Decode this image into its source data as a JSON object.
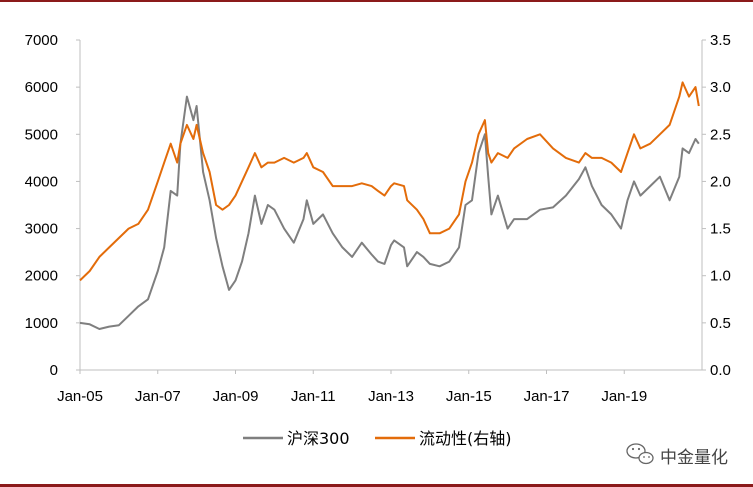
{
  "colors": {
    "frame": "#8b1a1a",
    "csi300": "#7f7f7f",
    "liquidity": "#e36c0a",
    "axis": "#bfbfbf"
  },
  "watermark": {
    "text": "中金量化",
    "icon": "wechat-icon"
  },
  "chart_data": {
    "type": "line",
    "title": "",
    "xlabel": "",
    "ylabel": "",
    "x_ticks": [
      "Jan-05",
      "Jan-07",
      "Jan-09",
      "Jan-11",
      "Jan-13",
      "Jan-15",
      "Jan-17",
      "Jan-19"
    ],
    "y_left_ticks": [
      "0",
      "1000",
      "2000",
      "3000",
      "4000",
      "5000",
      "6000",
      "7000"
    ],
    "y_right_ticks": [
      "0.0",
      "0.5",
      "1.0",
      "1.5",
      "2.0",
      "2.5",
      "3.0",
      "3.5"
    ],
    "ylim_left": [
      0,
      7000
    ],
    "ylim_right": [
      0,
      3.5
    ],
    "xlim": [
      "2005-01",
      "2020-12"
    ],
    "grid": false,
    "legend_position": "bottom",
    "series": [
      {
        "name": "沪深300",
        "axis": "left",
        "points": [
          [
            "2005-01",
            1000
          ],
          [
            "2005-04",
            970
          ],
          [
            "2005-07",
            870
          ],
          [
            "2005-10",
            920
          ],
          [
            "2006-01",
            950
          ],
          [
            "2006-04",
            1150
          ],
          [
            "2006-07",
            1350
          ],
          [
            "2006-10",
            1500
          ],
          [
            "2007-01",
            2100
          ],
          [
            "2007-03",
            2600
          ],
          [
            "2007-05",
            3800
          ],
          [
            "2007-07",
            3700
          ],
          [
            "2007-08",
            4800
          ],
          [
            "2007-10",
            5800
          ],
          [
            "2007-12",
            5300
          ],
          [
            "2008-01",
            5600
          ],
          [
            "2008-03",
            4200
          ],
          [
            "2008-05",
            3600
          ],
          [
            "2008-07",
            2800
          ],
          [
            "2008-09",
            2200
          ],
          [
            "2008-11",
            1700
          ],
          [
            "2009-01",
            1900
          ],
          [
            "2009-03",
            2300
          ],
          [
            "2009-05",
            2900
          ],
          [
            "2009-07",
            3700
          ],
          [
            "2009-09",
            3100
          ],
          [
            "2009-11",
            3500
          ],
          [
            "2010-01",
            3400
          ],
          [
            "2010-04",
            3000
          ],
          [
            "2010-07",
            2700
          ],
          [
            "2010-10",
            3200
          ],
          [
            "2010-11",
            3600
          ],
          [
            "2011-01",
            3100
          ],
          [
            "2011-04",
            3300
          ],
          [
            "2011-07",
            2900
          ],
          [
            "2011-10",
            2600
          ],
          [
            "2012-01",
            2400
          ],
          [
            "2012-04",
            2700
          ],
          [
            "2012-07",
            2450
          ],
          [
            "2012-09",
            2300
          ],
          [
            "2012-11",
            2250
          ],
          [
            "2013-01",
            2650
          ],
          [
            "2013-02",
            2750
          ],
          [
            "2013-05",
            2600
          ],
          [
            "2013-06",
            2200
          ],
          [
            "2013-09",
            2500
          ],
          [
            "2013-11",
            2400
          ],
          [
            "2014-01",
            2250
          ],
          [
            "2014-04",
            2200
          ],
          [
            "2014-07",
            2300
          ],
          [
            "2014-10",
            2600
          ],
          [
            "2014-12",
            3500
          ],
          [
            "2015-02",
            3600
          ],
          [
            "2015-04",
            4600
          ],
          [
            "2015-06",
            5000
          ],
          [
            "2015-07",
            4100
          ],
          [
            "2015-08",
            3300
          ],
          [
            "2015-10",
            3700
          ],
          [
            "2016-01",
            3000
          ],
          [
            "2016-03",
            3200
          ],
          [
            "2016-07",
            3200
          ],
          [
            "2016-11",
            3400
          ],
          [
            "2017-03",
            3450
          ],
          [
            "2017-07",
            3700
          ],
          [
            "2017-11",
            4050
          ],
          [
            "2018-01",
            4300
          ],
          [
            "2018-03",
            3900
          ],
          [
            "2018-06",
            3500
          ],
          [
            "2018-09",
            3300
          ],
          [
            "2018-12",
            3000
          ],
          [
            "2019-02",
            3600
          ],
          [
            "2019-04",
            4000
          ],
          [
            "2019-06",
            3700
          ],
          [
            "2019-09",
            3900
          ],
          [
            "2019-12",
            4100
          ],
          [
            "2020-03",
            3600
          ],
          [
            "2020-06",
            4100
          ],
          [
            "2020-07",
            4700
          ],
          [
            "2020-09",
            4600
          ],
          [
            "2020-11",
            4900
          ],
          [
            "2020-12",
            4800
          ]
        ]
      },
      {
        "name": "流动性(右轴)",
        "axis": "right",
        "points": [
          [
            "2005-01",
            0.95
          ],
          [
            "2005-04",
            1.05
          ],
          [
            "2005-07",
            1.2
          ],
          [
            "2005-10",
            1.3
          ],
          [
            "2006-01",
            1.4
          ],
          [
            "2006-04",
            1.5
          ],
          [
            "2006-07",
            1.55
          ],
          [
            "2006-10",
            1.7
          ],
          [
            "2007-01",
            2.0
          ],
          [
            "2007-03",
            2.2
          ],
          [
            "2007-05",
            2.4
          ],
          [
            "2007-07",
            2.2
          ],
          [
            "2007-08",
            2.4
          ],
          [
            "2007-10",
            2.6
          ],
          [
            "2007-12",
            2.45
          ],
          [
            "2008-01",
            2.6
          ],
          [
            "2008-03",
            2.3
          ],
          [
            "2008-05",
            2.1
          ],
          [
            "2008-07",
            1.75
          ],
          [
            "2008-09",
            1.7
          ],
          [
            "2008-11",
            1.75
          ],
          [
            "2009-01",
            1.85
          ],
          [
            "2009-03",
            2.0
          ],
          [
            "2009-05",
            2.15
          ],
          [
            "2009-07",
            2.3
          ],
          [
            "2009-09",
            2.15
          ],
          [
            "2009-11",
            2.2
          ],
          [
            "2010-01",
            2.2
          ],
          [
            "2010-04",
            2.25
          ],
          [
            "2010-07",
            2.2
          ],
          [
            "2010-10",
            2.25
          ],
          [
            "2010-11",
            2.3
          ],
          [
            "2011-01",
            2.15
          ],
          [
            "2011-04",
            2.1
          ],
          [
            "2011-07",
            1.95
          ],
          [
            "2011-10",
            1.95
          ],
          [
            "2012-01",
            1.95
          ],
          [
            "2012-04",
            1.98
          ],
          [
            "2012-07",
            1.95
          ],
          [
            "2012-09",
            1.9
          ],
          [
            "2012-11",
            1.85
          ],
          [
            "2013-01",
            1.95
          ],
          [
            "2013-02",
            1.98
          ],
          [
            "2013-05",
            1.95
          ],
          [
            "2013-06",
            1.8
          ],
          [
            "2013-09",
            1.7
          ],
          [
            "2013-11",
            1.6
          ],
          [
            "2014-01",
            1.45
          ],
          [
            "2014-04",
            1.45
          ],
          [
            "2014-07",
            1.5
          ],
          [
            "2014-10",
            1.65
          ],
          [
            "2014-12",
            2.0
          ],
          [
            "2015-02",
            2.2
          ],
          [
            "2015-04",
            2.5
          ],
          [
            "2015-06",
            2.65
          ],
          [
            "2015-07",
            2.3
          ],
          [
            "2015-08",
            2.2
          ],
          [
            "2015-10",
            2.3
          ],
          [
            "2016-01",
            2.25
          ],
          [
            "2016-03",
            2.35
          ],
          [
            "2016-07",
            2.45
          ],
          [
            "2016-11",
            2.5
          ],
          [
            "2017-03",
            2.35
          ],
          [
            "2017-07",
            2.25
          ],
          [
            "2017-11",
            2.2
          ],
          [
            "2018-01",
            2.3
          ],
          [
            "2018-03",
            2.25
          ],
          [
            "2018-06",
            2.25
          ],
          [
            "2018-09",
            2.2
          ],
          [
            "2018-12",
            2.1
          ],
          [
            "2019-02",
            2.3
          ],
          [
            "2019-04",
            2.5
          ],
          [
            "2019-06",
            2.35
          ],
          [
            "2019-09",
            2.4
          ],
          [
            "2019-12",
            2.5
          ],
          [
            "2020-03",
            2.6
          ],
          [
            "2020-06",
            2.9
          ],
          [
            "2020-07",
            3.05
          ],
          [
            "2020-09",
            2.9
          ],
          [
            "2020-11",
            3.0
          ],
          [
            "2020-12",
            2.8
          ]
        ]
      }
    ]
  }
}
